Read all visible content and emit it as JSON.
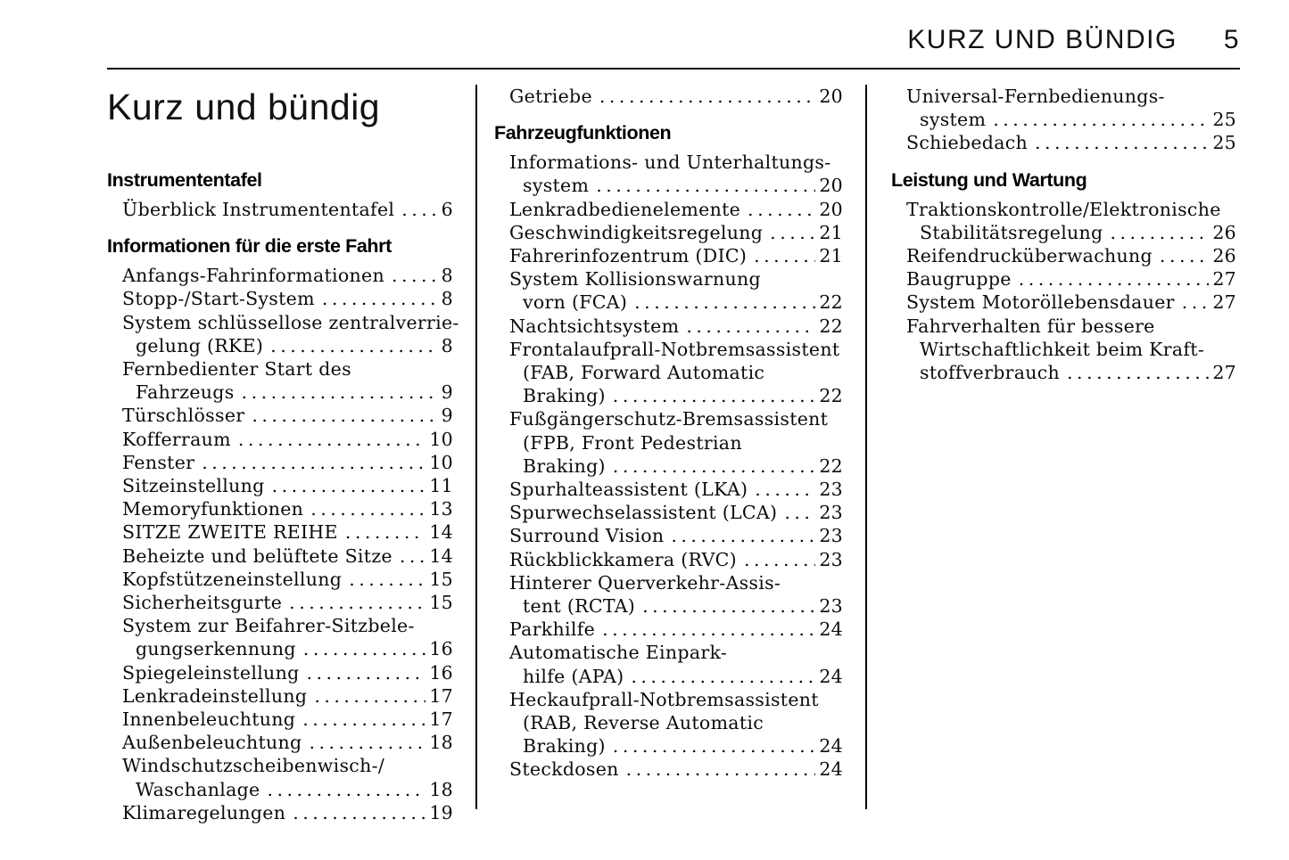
{
  "header": {
    "section_title": "KURZ UND BÜNDIG",
    "page_number": "5"
  },
  "page_title": "Kurz und bündig",
  "columns": [
    {
      "blocks": [
        {
          "type": "heading",
          "text": "Instrumententafel"
        },
        {
          "type": "entry",
          "lines": [
            "Überblick Instrumententafel"
          ],
          "page": "6"
        },
        {
          "type": "heading",
          "text": "Informationen für die erste Fahrt"
        },
        {
          "type": "entry",
          "lines": [
            "Anfangs-Fahrinformationen"
          ],
          "page": "8"
        },
        {
          "type": "entry",
          "lines": [
            "Stopp-/Start-System"
          ],
          "page": "8"
        },
        {
          "type": "entry",
          "lines": [
            "System schlüssellose zentralverrie-",
            "gelung (RKE)"
          ],
          "page": "8"
        },
        {
          "type": "entry",
          "lines": [
            "Fernbedienter Start des",
            "Fahrzeugs"
          ],
          "page": "9"
        },
        {
          "type": "entry",
          "lines": [
            "Türschlösser"
          ],
          "page": "9"
        },
        {
          "type": "entry",
          "lines": [
            "Kofferraum"
          ],
          "page": "10"
        },
        {
          "type": "entry",
          "lines": [
            "Fenster"
          ],
          "page": "10"
        },
        {
          "type": "entry",
          "lines": [
            "Sitzeinstellung"
          ],
          "page": "11"
        },
        {
          "type": "entry",
          "lines": [
            "Memoryfunktionen"
          ],
          "page": "13"
        },
        {
          "type": "entry",
          "lines": [
            "SITZE ZWEITE REIHE"
          ],
          "page": "14"
        },
        {
          "type": "entry",
          "lines": [
            "Beheizte und belüftete Sitze"
          ],
          "page": "14"
        },
        {
          "type": "entry",
          "lines": [
            "Kopfstützeneinstellung"
          ],
          "page": "15"
        },
        {
          "type": "entry",
          "lines": [
            "Sicherheitsgurte"
          ],
          "page": "15"
        },
        {
          "type": "entry",
          "lines": [
            "System zur Beifahrer-Sitzbele-",
            "gungserkennung"
          ],
          "page": "16"
        },
        {
          "type": "entry",
          "lines": [
            "Spiegeleinstellung"
          ],
          "page": "16"
        },
        {
          "type": "entry",
          "lines": [
            "Lenkradeinstellung"
          ],
          "page": "17"
        },
        {
          "type": "entry",
          "lines": [
            "Innenbeleuchtung"
          ],
          "page": "17"
        },
        {
          "type": "entry",
          "lines": [
            "Außenbeleuchtung"
          ],
          "page": "18"
        },
        {
          "type": "entry",
          "lines": [
            "Windschutzscheibenwisch-/",
            "Waschanlage"
          ],
          "page": "18"
        },
        {
          "type": "entry",
          "lines": [
            "Klimaregelungen"
          ],
          "page": "19"
        }
      ]
    },
    {
      "blocks": [
        {
          "type": "entry",
          "lines": [
            "Getriebe"
          ],
          "page": "20"
        },
        {
          "type": "heading",
          "text": "Fahrzeugfunktionen"
        },
        {
          "type": "entry",
          "lines": [
            "Informations- und Unterhaltungs-",
            "system"
          ],
          "page": "20"
        },
        {
          "type": "entry",
          "lines": [
            "Lenkradbedienelemente"
          ],
          "page": "20"
        },
        {
          "type": "entry",
          "lines": [
            "Geschwindigkeitsregelung"
          ],
          "page": "21"
        },
        {
          "type": "entry",
          "lines": [
            "Fahrerinfozentrum (DIC)"
          ],
          "page": "21"
        },
        {
          "type": "entry",
          "lines": [
            "System Kollisionswarnung",
            "vorn (FCA)"
          ],
          "page": "22"
        },
        {
          "type": "entry",
          "lines": [
            "Nachtsichtsystem"
          ],
          "page": "22"
        },
        {
          "type": "entry",
          "lines": [
            "Frontalaufprall-Notbremsassistent",
            "(FAB, Forward Automatic",
            "Braking)"
          ],
          "page": "22"
        },
        {
          "type": "entry",
          "lines": [
            "Fußgängerschutz-Bremsassistent",
            "(FPB, Front Pedestrian",
            "Braking)"
          ],
          "page": "22"
        },
        {
          "type": "entry",
          "lines": [
            "Spurhalteassistent (LKA)"
          ],
          "page": "23"
        },
        {
          "type": "entry",
          "lines": [
            "Spurwechselassistent (LCA)"
          ],
          "page": "23"
        },
        {
          "type": "entry",
          "lines": [
            "Surround Vision"
          ],
          "page": "23"
        },
        {
          "type": "entry",
          "lines": [
            "Rückblickkamera (RVC)"
          ],
          "page": "23"
        },
        {
          "type": "entry",
          "lines": [
            "Hinterer Querverkehr-Assis-",
            "tent (RCTA)"
          ],
          "page": "23"
        },
        {
          "type": "entry",
          "lines": [
            "Parkhilfe"
          ],
          "page": "24"
        },
        {
          "type": "entry",
          "lines": [
            "Automatische Einpark-",
            "hilfe (APA)"
          ],
          "page": "24"
        },
        {
          "type": "entry",
          "lines": [
            "Heckaufprall-Notbremsassistent",
            "(RAB, Reverse Automatic",
            "Braking)"
          ],
          "page": "24"
        },
        {
          "type": "entry",
          "lines": [
            "Steckdosen"
          ],
          "page": "24"
        }
      ]
    },
    {
      "blocks": [
        {
          "type": "entry",
          "lines": [
            "Universal-Fernbedienungs-",
            "system"
          ],
          "page": "25"
        },
        {
          "type": "entry",
          "lines": [
            "Schiebedach"
          ],
          "page": "25"
        },
        {
          "type": "heading",
          "text": "Leistung und Wartung"
        },
        {
          "type": "entry",
          "lines": [
            "Traktionskontrolle/Elektronische",
            "Stabilitätsregelung"
          ],
          "page": "26"
        },
        {
          "type": "entry",
          "lines": [
            "Reifendrucküberwachung"
          ],
          "page": "26"
        },
        {
          "type": "entry",
          "lines": [
            "Baugruppe"
          ],
          "page": "27"
        },
        {
          "type": "entry",
          "lines": [
            "System Motoröllebensdauer"
          ],
          "page": "27"
        },
        {
          "type": "entry",
          "lines": [
            "Fahrverhalten für bessere",
            "Wirtschaftlichkeit beim Kraft-",
            "stoffverbrauch"
          ],
          "page": "27"
        }
      ]
    }
  ]
}
